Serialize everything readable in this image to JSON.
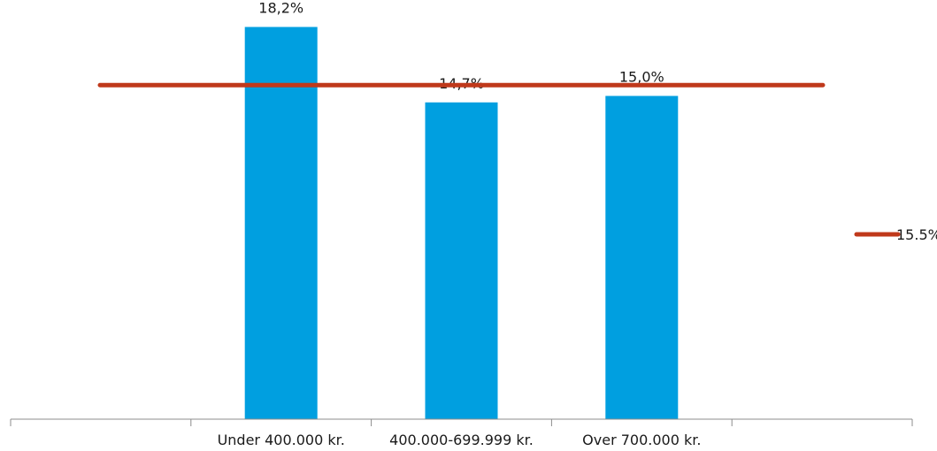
{
  "chart_data": {
    "type": "bar",
    "categories": [
      "",
      "Under 400.000 kr.",
      "400.000-699.999 kr.",
      "Over 700.000 kr.",
      ""
    ],
    "values": [
      null,
      18.2,
      14.7,
      15.0,
      null
    ],
    "data_labels": [
      "",
      "18,2%",
      "14,7%",
      "15,0%",
      ""
    ],
    "reference_line": {
      "value": 15.5,
      "label": "15.5%",
      "color": "#c0391b"
    },
    "bar_color": "#009fe0",
    "ylim": [
      0,
      19
    ],
    "grid": false,
    "legend": "right",
    "title": "",
    "xlabel": "",
    "ylabel": ""
  }
}
